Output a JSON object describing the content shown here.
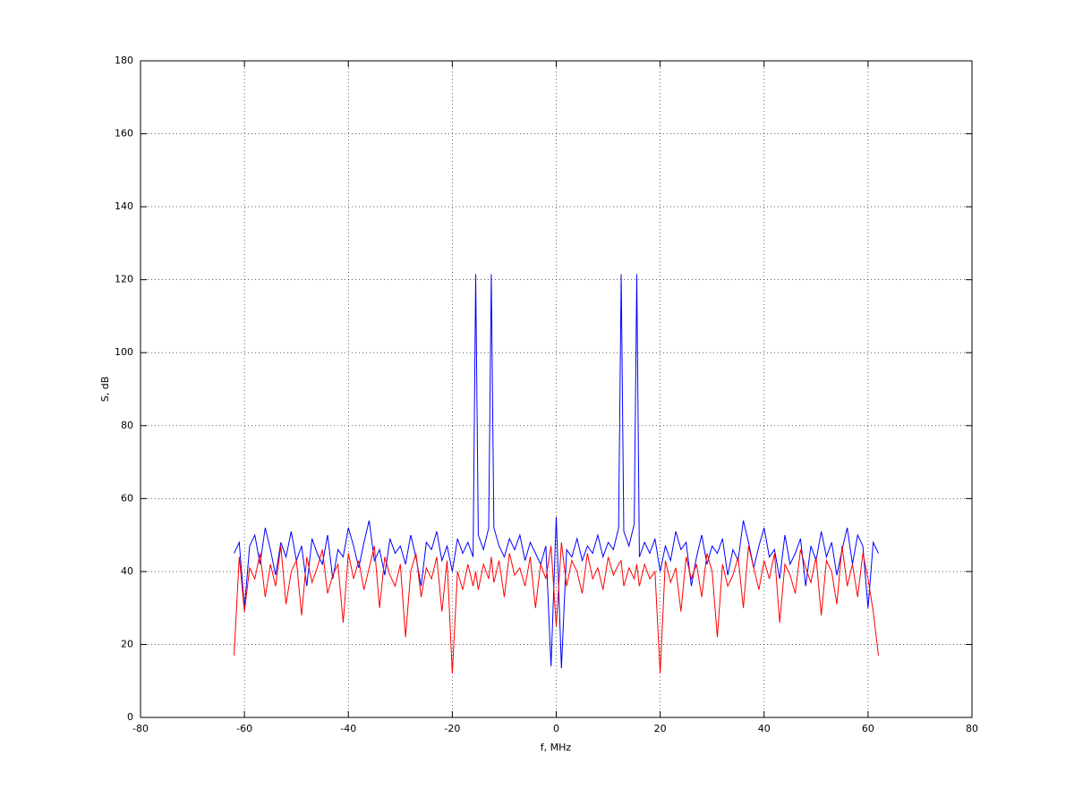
{
  "chart_data": {
    "type": "line",
    "x_label": "f, MHz",
    "y_label": "S, dB",
    "x": [
      -62,
      -61,
      -60,
      -59,
      -58,
      -57,
      -56,
      -55,
      -54,
      -53,
      -52,
      -51,
      -50,
      -49,
      -48,
      -47,
      -46,
      -45,
      -44,
      -43,
      -42,
      -41,
      -40,
      -39,
      -38,
      -37,
      -36,
      -35,
      -34,
      -33,
      -32,
      -31,
      -30,
      -29,
      -28,
      -27,
      -26,
      -25,
      -24,
      -23,
      -22,
      -21,
      -20,
      -19,
      -18,
      -17,
      -16,
      -15.5,
      -15,
      -14,
      -13,
      -12.5,
      -12,
      -11,
      -10,
      -9,
      -8,
      -7,
      -6,
      -5,
      -4,
      -3,
      -2,
      -1,
      0,
      1,
      2,
      3,
      4,
      5,
      6,
      7,
      8,
      9,
      10,
      11,
      12,
      12.5,
      13,
      14,
      15,
      15.5,
      16,
      17,
      18,
      19,
      20,
      21,
      22,
      23,
      24,
      25,
      26,
      27,
      28,
      29,
      30,
      31,
      32,
      33,
      34,
      35,
      36,
      37,
      38,
      39,
      40,
      41,
      42,
      43,
      44,
      45,
      46,
      47,
      48,
      49,
      50,
      51,
      52,
      53,
      54,
      55,
      56,
      57,
      58,
      59,
      60,
      61,
      62
    ],
    "series": [
      {
        "color": "#0000ff",
        "values": [
          45,
          48,
          30,
          47,
          50,
          42,
          52,
          46,
          39,
          48,
          44,
          51,
          43,
          47,
          36,
          49,
          45,
          42,
          50,
          38,
          46,
          44,
          52,
          47,
          41,
          48,
          54,
          43,
          46,
          39,
          49,
          45,
          47,
          42,
          50,
          44,
          36,
          48,
          46,
          51,
          43,
          47,
          40,
          49,
          45,
          48,
          44,
          121.5,
          50,
          46,
          52,
          121.5,
          52,
          47,
          44,
          49,
          46,
          50,
          43,
          48,
          45,
          42,
          47,
          14,
          55,
          13.5,
          46,
          44,
          49,
          43,
          47,
          45,
          50,
          44,
          48,
          46,
          52,
          121.5,
          51,
          47,
          53,
          121.5,
          44,
          48,
          45,
          49,
          40,
          47,
          43,
          51,
          46,
          48,
          36,
          44,
          50,
          42,
          47,
          45,
          49,
          39,
          46,
          43,
          54,
          48,
          41,
          47,
          52,
          44,
          46,
          38,
          50,
          42,
          45,
          49,
          36,
          47,
          43,
          51,
          44,
          48,
          39,
          46,
          52,
          42,
          50,
          47,
          30,
          48,
          45
        ]
      },
      {
        "color": "#ff0000",
        "values": [
          17,
          44,
          29,
          41,
          38,
          45,
          33,
          42,
          36,
          47,
          31,
          40,
          43,
          28,
          44,
          37,
          41,
          46,
          34,
          39,
          42,
          26,
          45,
          38,
          43,
          35,
          41,
          47,
          30,
          44,
          39,
          36,
          42,
          22,
          40,
          45,
          33,
          41,
          38,
          44,
          29,
          43,
          12,
          40,
          35,
          42,
          36,
          40,
          35,
          42,
          38,
          44,
          37,
          43,
          33,
          45,
          39,
          41,
          36,
          44,
          30,
          42,
          38,
          47,
          25,
          48,
          36,
          43,
          40,
          34,
          45,
          38,
          41,
          35,
          44,
          39,
          42,
          43,
          36,
          41,
          38,
          42,
          36,
          42,
          38,
          40,
          12,
          43,
          37,
          41,
          29,
          44,
          38,
          42,
          33,
          45,
          40,
          22,
          42,
          36,
          39,
          44,
          30,
          47,
          41,
          35,
          43,
          38,
          45,
          26,
          42,
          39,
          34,
          46,
          41,
          37,
          44,
          28,
          43,
          40,
          31,
          47,
          36,
          42,
          33,
          45,
          38,
          29,
          17
        ]
      }
    ],
    "xlim": [
      -80,
      80
    ],
    "xticks": [
      -80,
      -60,
      -40,
      -20,
      0,
      20,
      40,
      60,
      80
    ],
    "ylim": [
      0,
      180
    ],
    "yticks": [
      0,
      20,
      40,
      60,
      80,
      100,
      120,
      140,
      160,
      180
    ],
    "grid": true
  }
}
